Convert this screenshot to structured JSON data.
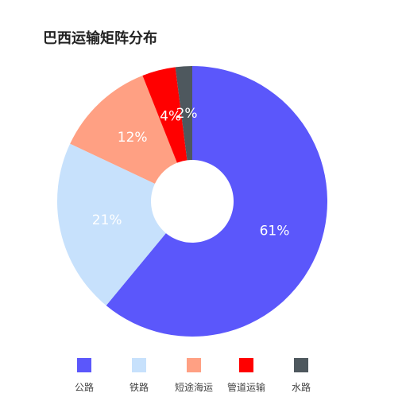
{
  "chart_data": {
    "type": "pie",
    "title": "巴西运输矩阵分布",
    "categories": [
      "公路",
      "铁路",
      "短途海运",
      "管道运输",
      "水路"
    ],
    "values": [
      61,
      21,
      12,
      4,
      2
    ],
    "value_labels": [
      "61%",
      "21%",
      "12%",
      "4%",
      "2%"
    ],
    "colors": [
      "#5B57FB",
      "#C7E1FC",
      "#FFA083",
      "#FF0000",
      "#4E585E"
    ],
    "legend_position": "bottom",
    "donut": true
  }
}
